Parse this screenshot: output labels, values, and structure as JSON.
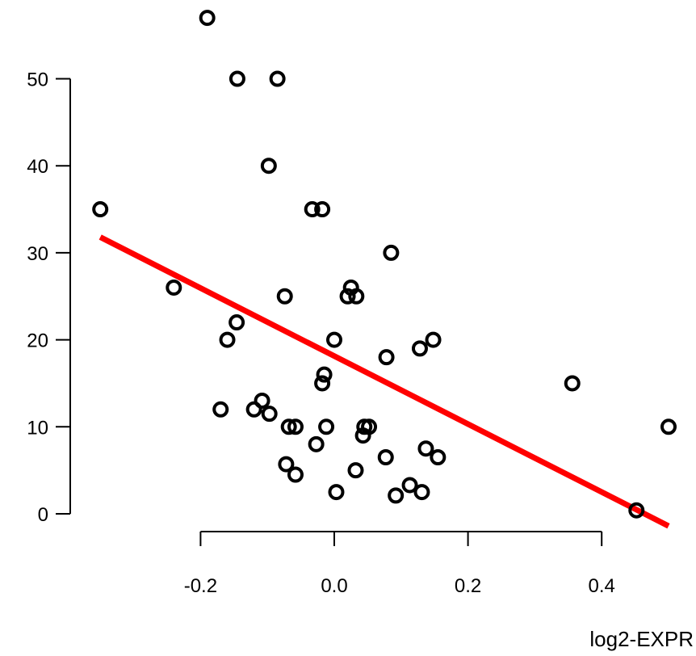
{
  "chart_data": {
    "type": "scatter",
    "title": "",
    "xlabel": "log2-EXPR",
    "ylabel": "",
    "xlim": [
      -0.35,
      0.5
    ],
    "ylim": [
      0,
      57
    ],
    "x_ticks": [
      -0.2,
      0.0,
      0.2,
      0.4
    ],
    "x_tick_labels": [
      "-0.2",
      "0.0",
      "0.2",
      "0.4"
    ],
    "y_ticks": [
      0,
      10,
      20,
      30,
      40,
      50
    ],
    "y_tick_labels": [
      "0",
      "10",
      "20",
      "30",
      "40",
      "50"
    ],
    "grid": false,
    "points": [
      {
        "x": -0.19,
        "y": 57
      },
      {
        "x": -0.145,
        "y": 50
      },
      {
        "x": -0.085,
        "y": 50
      },
      {
        "x": -0.098,
        "y": 40
      },
      {
        "x": -0.35,
        "y": 35
      },
      {
        "x": -0.033,
        "y": 35
      },
      {
        "x": -0.018,
        "y": 35
      },
      {
        "x": 0.085,
        "y": 30
      },
      {
        "x": -0.24,
        "y": 26
      },
      {
        "x": 0.025,
        "y": 26
      },
      {
        "x": -0.074,
        "y": 25
      },
      {
        "x": 0.02,
        "y": 25
      },
      {
        "x": 0.033,
        "y": 25
      },
      {
        "x": -0.146,
        "y": 22
      },
      {
        "x": -0.16,
        "y": 20
      },
      {
        "x": 0.0,
        "y": 20
      },
      {
        "x": 0.148,
        "y": 20
      },
      {
        "x": 0.128,
        "y": 19
      },
      {
        "x": 0.078,
        "y": 18
      },
      {
        "x": -0.015,
        "y": 16
      },
      {
        "x": -0.018,
        "y": 15
      },
      {
        "x": 0.356,
        "y": 15
      },
      {
        "x": -0.108,
        "y": 13
      },
      {
        "x": -0.17,
        "y": 12
      },
      {
        "x": -0.12,
        "y": 12
      },
      {
        "x": -0.097,
        "y": 11.5
      },
      {
        "x": -0.068,
        "y": 10
      },
      {
        "x": -0.058,
        "y": 10
      },
      {
        "x": -0.012,
        "y": 10
      },
      {
        "x": 0.045,
        "y": 10
      },
      {
        "x": 0.052,
        "y": 10
      },
      {
        "x": 0.5,
        "y": 10
      },
      {
        "x": 0.043,
        "y": 9
      },
      {
        "x": -0.027,
        "y": 8
      },
      {
        "x": 0.137,
        "y": 7.5
      },
      {
        "x": 0.077,
        "y": 6.5
      },
      {
        "x": 0.155,
        "y": 6.5
      },
      {
        "x": -0.072,
        "y": 5.7
      },
      {
        "x": 0.032,
        "y": 5
      },
      {
        "x": -0.058,
        "y": 4.5
      },
      {
        "x": 0.113,
        "y": 3.3
      },
      {
        "x": 0.003,
        "y": 2.5
      },
      {
        "x": 0.131,
        "y": 2.5
      },
      {
        "x": 0.092,
        "y": 2.1
      },
      {
        "x": 0.452,
        "y": 0.4
      }
    ],
    "fit_line": {
      "x": [
        -0.35,
        0.5
      ],
      "y": [
        31.8,
        -1.4
      ]
    },
    "colors": {
      "points": "#000000",
      "fit_line": "#ff0000",
      "axes": "#000000"
    }
  }
}
